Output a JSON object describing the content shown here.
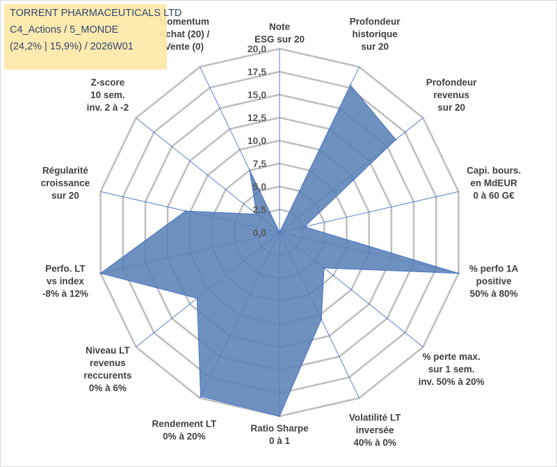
{
  "chart_data": {
    "type": "radar",
    "title_lines": [
      "TORRENT PHARMACEUTICALS LTD",
      "C4_Actions / 5_MONDE",
      "(24,2% | 15,9%) / 2026W01"
    ],
    "rlim": [
      0,
      20
    ],
    "tick_values": [
      0,
      2.5,
      5,
      7.5,
      10,
      12.5,
      15,
      17.5,
      20
    ],
    "tick_labels": [
      "0,0",
      "2,5",
      "5,0",
      "7,5",
      "10,0",
      "12,5",
      "15,0",
      "17,5",
      "20,0"
    ],
    "axes": [
      {
        "lines": [
          "Note",
          "ESG sur 20"
        ],
        "value": 0
      },
      {
        "lines": [
          "Profondeur",
          "historique",
          "sur 20"
        ],
        "value": 17.8
      },
      {
        "lines": [
          "Profondeur",
          "revenus",
          "sur 20"
        ],
        "value": 16.2
      },
      {
        "lines": [
          "Capi. bours.",
          "en MdEUR",
          "0 à 60 G€"
        ],
        "value": 2.8
      },
      {
        "lines": [
          "% perfo 1A",
          "positive",
          "50% à 80%"
        ],
        "value": 20
      },
      {
        "lines": [
          "% perte max.",
          "sur 1 sem.",
          "inv. 50% à 20%"
        ],
        "value": 6.2
      },
      {
        "lines": [
          "Volatilité LT",
          "inversée",
          "40% à 0%"
        ],
        "value": 10.5
      },
      {
        "lines": [
          "Ratio Sharpe",
          "0 à 1"
        ],
        "value": 20
      },
      {
        "lines": [
          "Rendement LT",
          "0% à 20%"
        ],
        "value": 19.8
      },
      {
        "lines": [
          "Niveau LT",
          "revenus",
          "reccurents",
          "0% à 6%"
        ],
        "value": 11.5
      },
      {
        "lines": [
          "Perfo. LT",
          "vs index",
          "-8% à 12%"
        ],
        "value": 20
      },
      {
        "lines": [
          "Régularité",
          "croissance",
          "sur 20"
        ],
        "value": 10.5
      },
      {
        "lines": [
          "Z-score",
          "10 sem.",
          "inv. 2 à -2"
        ],
        "value": 3.2
      },
      {
        "lines": [
          "Momentum",
          "Achat (20) /",
          "Vente (0)"
        ],
        "value": 7.5
      }
    ],
    "grid": true,
    "colors": {
      "fill": "#5b82b7",
      "fill_stroke": "#4472c4",
      "grid": "#bfbfbf",
      "spokes": "#4472c4",
      "title_bg": "#fde9a8",
      "title_text": "#1f3864"
    }
  }
}
